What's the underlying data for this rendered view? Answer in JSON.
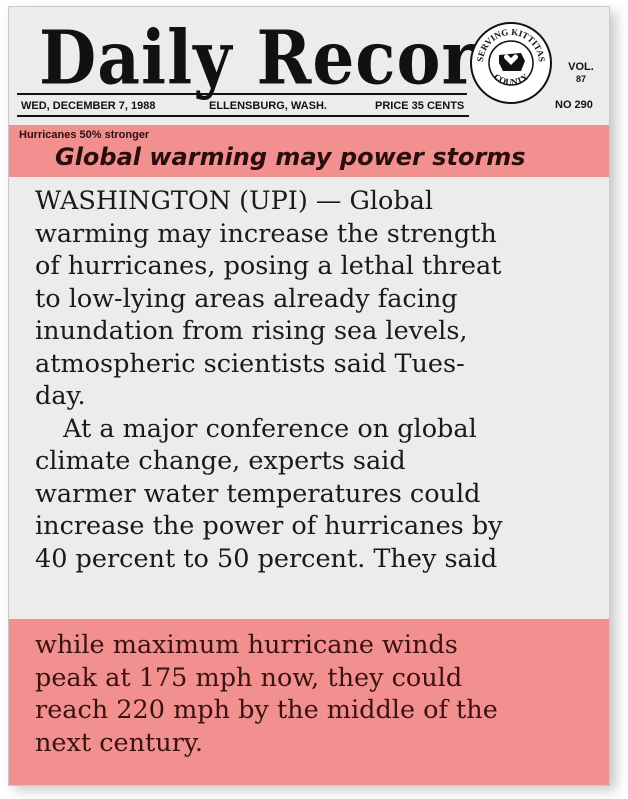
{
  "masthead": {
    "nameplate": "Daily Record",
    "date": "WED, DECEMBER 7, 1988",
    "city": "ELLENSBURG, WASH.",
    "price": "PRICE 35 CENTS",
    "seal_top": "SERVING KITTITAS",
    "seal_bottom": "COUNTY",
    "vol_label": "VOL.",
    "vol_number": "87",
    "issue": "NO 290"
  },
  "article": {
    "kicker": "Hurricanes 50% stronger",
    "headline": "Global warming may power storms",
    "para1": [
      "WASHINGTON (UPI) — Global",
      "warming may increase the strength",
      "of hurricanes, posing a lethal threat",
      "to low-lying areas already facing",
      "inundation from rising sea levels,",
      "atmospheric scientists said Tues-",
      "day."
    ],
    "para2": [
      "At a major conference on global",
      "climate change, experts said",
      "warmer water temperatures could",
      "increase the power of hurricanes by",
      "40 percent to 50 percent. They said"
    ],
    "highlight": [
      "while maximum hurricane winds",
      "peak at 175 mph now, they could",
      "reach 220 mph by the middle of the",
      "next century."
    ]
  },
  "colors": {
    "highlight": "#f28f8f",
    "paper": "#ececec",
    "ink": "#1a1a1a"
  }
}
